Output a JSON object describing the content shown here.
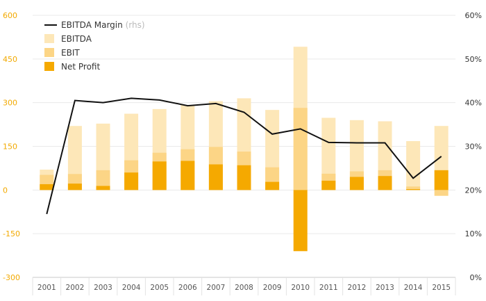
{
  "chart_data": {
    "type": "bar",
    "categories": [
      "2001",
      "2002",
      "2003",
      "2004",
      "2005",
      "2006",
      "2007",
      "2008",
      "2009",
      "2010",
      "2011",
      "2012",
      "2013",
      "2014",
      "2015"
    ],
    "series": [
      {
        "name": "EBITDA",
        "values": [
          70,
          220,
          228,
          262,
          278,
          292,
          305,
          315,
          275,
          492,
          248,
          240,
          236,
          168,
          220
        ]
      },
      {
        "name": "EBIT",
        "values": [
          52,
          55,
          68,
          102,
          128,
          140,
          148,
          132,
          78,
          282,
          56,
          64,
          68,
          12,
          -20
        ]
      },
      {
        "name": "Net Profit",
        "values": [
          20,
          22,
          14,
          60,
          98,
          100,
          88,
          85,
          28,
          -210,
          32,
          45,
          48,
          3,
          68
        ]
      }
    ],
    "line_series": {
      "name": "EBITDA Margin",
      "axis": "rhs",
      "values": [
        14.5,
        40.5,
        40.0,
        41.0,
        40.6,
        39.3,
        39.8,
        37.8,
        32.8,
        34.0,
        30.9,
        30.8,
        30.8,
        22.7,
        27.7
      ]
    },
    "ylim": [
      -300,
      600
    ],
    "yticks": [
      "600",
      "450",
      "300",
      "150",
      "0",
      "-150",
      "-300"
    ],
    "y2lim": [
      0,
      60
    ],
    "y2ticks": [
      "60%",
      "50%",
      "40%",
      "30%",
      "20%",
      "10%",
      "0%"
    ],
    "legend": {
      "line_label": "EBITDA Margin",
      "line_suffix": "(rhs)",
      "items": [
        "EBITDA",
        "EBIT",
        "Net Profit"
      ],
      "placement": "top-left"
    },
    "colors": {
      "EBITDA": "#fde7b8",
      "EBIT": "#fcd586",
      "Net Profit": "#f5a900",
      "line": "#111111",
      "left_ticks": "#f2a900"
    },
    "grid": true
  }
}
